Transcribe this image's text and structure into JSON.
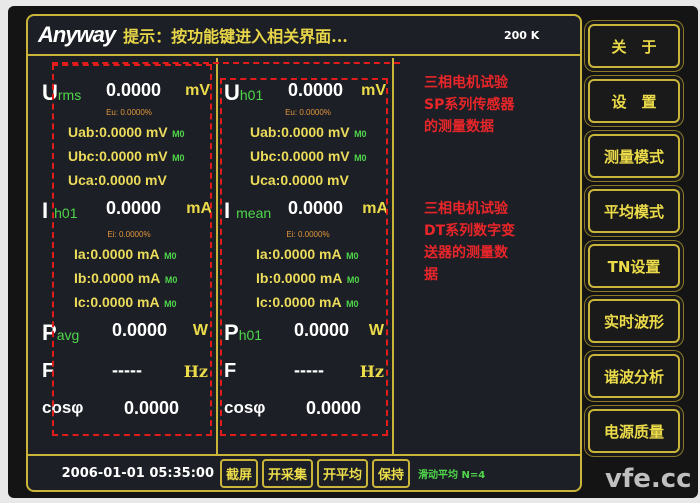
{
  "header": {
    "logo": "Anyway",
    "tip": "提示：按功能键进入相关界面...",
    "rate": "200 K"
  },
  "col1": {
    "u_main": "U",
    "u_sub": "rms",
    "u_val": "0.0000",
    "u_unit": "mV",
    "eu": "Eu: 0.0000%",
    "uab": "Uab:0.0000 mV",
    "ubc": "Ubc:0.0000 mV",
    "uca": "Uca:0.0000 mV",
    "m0": "M0",
    "i_main": "I",
    "i_sub": "h01",
    "i_val": "0.0000",
    "i_unit": "mA",
    "ei": "Ei: 0.0000%",
    "ia": "Ia:0.0000 mA",
    "ib": "Ib:0.0000 mA",
    "ic": "Ic:0.0000 mA",
    "p_main": "P",
    "p_sub": "avg",
    "p_val": "0.0000",
    "p_unit": "W",
    "f_main": "F",
    "f_val": "-----",
    "f_unit": "Hz",
    "cos": "cosφ",
    "cos_val": "0.0000"
  },
  "col2": {
    "u_main": "U",
    "u_sub": "h01",
    "u_val": "0.0000",
    "u_unit": "mV",
    "eu": "Eu: 0.0000%",
    "uab": "Uab:0.0000 mV",
    "ubc": "Ubc:0.0000 mV",
    "uca": "Uca:0.0000 mV",
    "m0": "M0",
    "i_main": "I",
    "i_sub": "mean",
    "i_val": "0.0000",
    "i_unit": "mA",
    "ei": "Ei: 0.0000%",
    "ia": "Ia:0.0000 mA",
    "ib": "Ib:0.0000 mA",
    "ic": "Ic:0.0000 mA",
    "p_main": "P",
    "p_sub": "h01",
    "p_val": "0.0000",
    "p_unit": "W",
    "f_main": "F",
    "f_val": "-----",
    "f_unit": "Hz",
    "cos": "cosφ",
    "cos_val": "0.0000"
  },
  "annotations": {
    "a1": "三相电机试验\nSP系列传感器\n的测量数据",
    "a2": "三相电机试验\nDT系列数字变\n送器的测量数\n据"
  },
  "footer": {
    "datetime": "2006-01-01 05:35:00",
    "buttons": [
      "截屏",
      "开采集",
      "开平均",
      "保持"
    ],
    "status": "滑动平均 N=4"
  },
  "side_buttons": [
    "关　于",
    "设　置",
    "测量模式",
    "平均模式",
    "TN设置",
    "实时波形",
    "谐波分析",
    "电源质量"
  ],
  "watermark": "vfe.cc",
  "colors": {
    "frame": "#c9b53a",
    "value": "#ffffff",
    "label": "#ecdc4a",
    "sub": "#4fd64a",
    "annotation": "#e8262a"
  }
}
